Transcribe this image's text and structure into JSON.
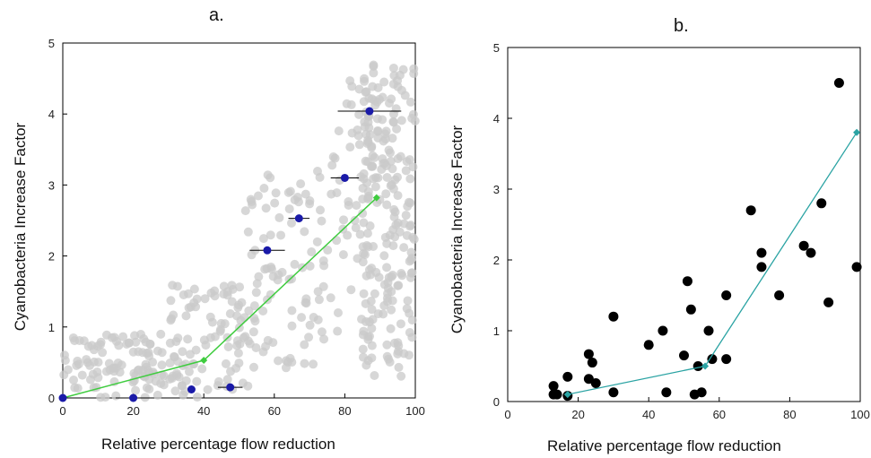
{
  "chart_data": [
    {
      "type": "scatter",
      "title": "a.",
      "xlabel": "Relative percentage flow reduction",
      "ylabel": "Cyanobacteria Increase Factor",
      "xlim": [
        0,
        100
      ],
      "ylim": [
        0,
        5
      ],
      "xticks": [
        0,
        20,
        40,
        60,
        80,
        100
      ],
      "yticks": [
        0,
        1,
        2,
        3,
        4,
        5
      ],
      "grid": false,
      "colors": {
        "background_points": "#c9c9c9",
        "binned_means": "#1a1aa8",
        "fit": "#3fcc3f",
        "error_bars": "#000000"
      },
      "series": [
        {
          "role": "binned means with horizontal error bars",
          "points": [
            {
              "x": 0,
              "y": 0.0,
              "xerr": 0
            },
            {
              "x": 20,
              "y": 0.0,
              "xerr": 5
            },
            {
              "x": 36.5,
              "y": 0.12,
              "xerr": 0
            },
            {
              "x": 47.5,
              "y": 0.15,
              "xerr": 3.5
            },
            {
              "x": 58,
              "y": 2.08,
              "xerr": 5
            },
            {
              "x": 67,
              "y": 2.53,
              "xerr": 3
            },
            {
              "x": 80,
              "y": 3.1,
              "xerr": 4
            },
            {
              "x": 87,
              "y": 4.04,
              "xerr": 9
            }
          ]
        },
        {
          "role": "piecewise fit",
          "x": [
            0,
            40,
            89
          ],
          "y": [
            0,
            0.53,
            2.82
          ]
        }
      ],
      "background_cloud": {
        "description": "dense grey scatter of individual observations",
        "clusters": [
          {
            "x_range": [
              0,
              35
            ],
            "y_range": [
              0,
              0.9
            ],
            "count": 110
          },
          {
            "x_range": [
              30,
              55
            ],
            "y_range": [
              0,
              1.6
            ],
            "count": 90
          },
          {
            "x_range": [
              50,
              75
            ],
            "y_range": [
              0.4,
              3.2
            ],
            "count": 90
          },
          {
            "x_range": [
              75,
              88
            ],
            "y_range": [
              0.8,
              4.5
            ],
            "count": 60
          },
          {
            "x_range": [
              85,
              100
            ],
            "y_range": [
              0.3,
              4.8
            ],
            "count": 200
          }
        ]
      }
    },
    {
      "type": "scatter",
      "title": "b.",
      "xlabel": "Relative percentage flow reduction",
      "ylabel": "Cyanobacteria Increase Factor",
      "xlim": [
        0,
        100
      ],
      "ylim": [
        0,
        5
      ],
      "xticks": [
        0,
        20,
        40,
        60,
        80,
        100
      ],
      "yticks": [
        0,
        1,
        2,
        3,
        4,
        5
      ],
      "grid": false,
      "colors": {
        "points": "#000000",
        "fit": "#2aa3a3"
      },
      "series": [
        {
          "role": "observations",
          "x": [
            13,
            13,
            14,
            17,
            17,
            23,
            23,
            24,
            25,
            30,
            30,
            40,
            44,
            45,
            50,
            51,
            52,
            53,
            54,
            55,
            57,
            58,
            62,
            62,
            69,
            72,
            72,
            77,
            84,
            86,
            89,
            91,
            94,
            99
          ],
          "y": [
            0.22,
            0.1,
            0.1,
            0.35,
            0.08,
            0.67,
            0.32,
            0.55,
            0.26,
            1.2,
            0.13,
            0.8,
            1.0,
            0.13,
            0.65,
            1.7,
            1.3,
            0.1,
            0.5,
            0.13,
            1.0,
            0.6,
            1.5,
            0.6,
            2.7,
            2.1,
            1.9,
            1.5,
            2.2,
            2.1,
            2.8,
            1.4,
            4.5,
            1.9
          ]
        },
        {
          "role": "piecewise fit",
          "x": [
            17,
            56,
            99
          ],
          "y": [
            0.1,
            0.5,
            3.8
          ]
        }
      ]
    }
  ]
}
